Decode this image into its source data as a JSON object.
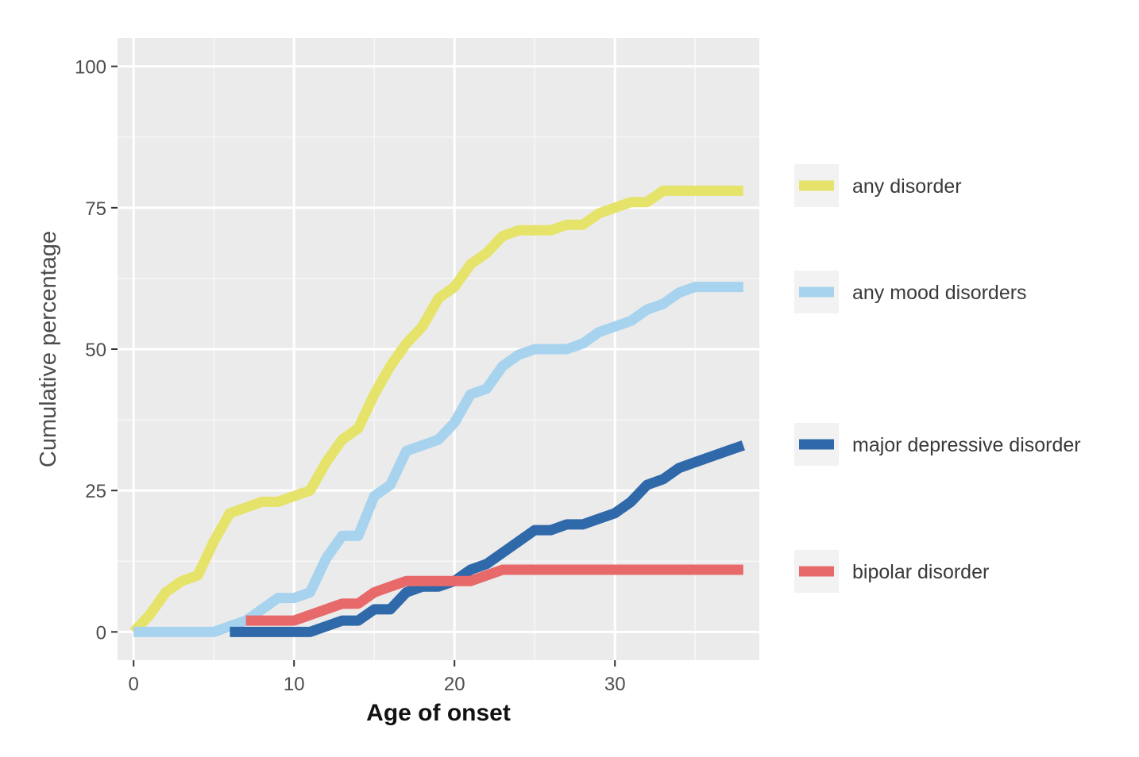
{
  "chart_data": {
    "type": "line",
    "xlabel": "Age of onset",
    "ylabel": "Cumulative percentage",
    "xlim": [
      -1,
      39
    ],
    "ylim": [
      -5,
      105
    ],
    "xticks": [
      0,
      10,
      20,
      30
    ],
    "yticks": [
      0,
      25,
      50,
      75,
      100
    ],
    "grid": true,
    "legend_position": "right",
    "background": "#ebebeb",
    "series": [
      {
        "name": "any disorder",
        "color": "#e6e36a",
        "x": [
          0,
          1,
          2,
          3,
          4,
          5,
          6,
          7,
          8,
          9,
          10,
          11,
          12,
          13,
          14,
          15,
          16,
          17,
          18,
          19,
          20,
          21,
          22,
          23,
          24,
          25,
          26,
          27,
          28,
          29,
          30,
          31,
          32,
          33,
          34,
          35,
          36,
          37,
          38
        ],
        "values": [
          0,
          3,
          7,
          9,
          10,
          16,
          21,
          22,
          23,
          23,
          24,
          25,
          30,
          34,
          36,
          42,
          47,
          51,
          54,
          59,
          61,
          65,
          67,
          70,
          71,
          71,
          71,
          72,
          72,
          74,
          75,
          76,
          76,
          78,
          78,
          78,
          78,
          78,
          78
        ]
      },
      {
        "name": "any mood disorders",
        "color": "#a7d3ee",
        "x": [
          0,
          1,
          2,
          3,
          4,
          5,
          6,
          7,
          8,
          9,
          10,
          11,
          12,
          13,
          14,
          15,
          16,
          17,
          18,
          19,
          20,
          21,
          22,
          23,
          24,
          25,
          26,
          27,
          28,
          29,
          30,
          31,
          32,
          33,
          34,
          35,
          36,
          37,
          38
        ],
        "values": [
          0,
          0,
          0,
          0,
          0,
          0,
          1,
          2,
          4,
          6,
          6,
          7,
          13,
          17,
          17,
          24,
          26,
          32,
          33,
          34,
          37,
          42,
          43,
          47,
          49,
          50,
          50,
          50,
          51,
          53,
          54,
          55,
          57,
          58,
          60,
          61,
          61,
          61,
          61
        ]
      },
      {
        "name": "major depressive disorder",
        "color": "#2f69aa",
        "x": [
          6,
          7,
          8,
          9,
          10,
          11,
          12,
          13,
          14,
          15,
          16,
          17,
          18,
          19,
          20,
          21,
          22,
          23,
          24,
          25,
          26,
          27,
          28,
          29,
          30,
          31,
          32,
          33,
          34,
          35,
          36,
          37,
          38
        ],
        "values": [
          0,
          0,
          0,
          0,
          0,
          0,
          1,
          2,
          2,
          4,
          4,
          7,
          8,
          8,
          9,
          11,
          12,
          14,
          16,
          18,
          18,
          19,
          19,
          20,
          21,
          23,
          26,
          27,
          29,
          30,
          31,
          32,
          33
        ]
      },
      {
        "name": "bipolar disorder",
        "color": "#e8696a",
        "x": [
          7,
          8,
          9,
          10,
          11,
          12,
          13,
          14,
          15,
          16,
          17,
          18,
          19,
          20,
          21,
          22,
          23,
          24,
          25,
          26,
          27,
          28,
          29,
          30,
          31,
          32,
          33,
          34,
          35,
          36,
          37,
          38
        ],
        "values": [
          2,
          2,
          2,
          2,
          3,
          4,
          5,
          5,
          7,
          8,
          9,
          9,
          9,
          9,
          9,
          10,
          11,
          11,
          11,
          11,
          11,
          11,
          11,
          11,
          11,
          11,
          11,
          11,
          11,
          11,
          11,
          11
        ]
      }
    ]
  }
}
